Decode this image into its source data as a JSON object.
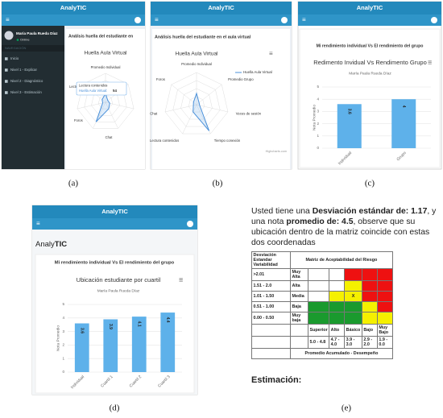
{
  "panels": {
    "a": {
      "caption": "(a)",
      "app_title": "AnalyTIC",
      "user": "María Paula Rueda Díaz",
      "status": "Online",
      "nav_heading": "NAVEGACIÓN",
      "menu": [
        "Inicio",
        "Nivel 1 - Explicar",
        "Nivel 2 - Diagnóstico",
        "Nivel 3 - Estimación"
      ],
      "section_title": "Análisis huella del estudiante en",
      "chart_title": "Huella Aula Virtual",
      "axis_labels": [
        "Promedio Individual",
        "Lectura contenidos",
        "Foros",
        "Chat"
      ],
      "tooltip": {
        "title": "Lectura contenidos",
        "label": "Huella Aula Virtual:",
        "value": 54
      }
    },
    "b": {
      "caption": "(b)",
      "app_title": "AnalyTIC",
      "section_title": "Análisis huella del estudiante en el aula virtual",
      "chart_title": "Huella Aula Virtual",
      "legend": "Huella Aula Virtual",
      "axis_labels": [
        "Promedio Individual",
        "Promedio Grupo",
        "Veces de sesión",
        "Tiempo conexión",
        "Lectura contenidos",
        "Chat",
        "Foros"
      ],
      "credits": "Highcharts.com"
    },
    "c": {
      "caption": "(c)",
      "app_title": "AnalyTIC",
      "section_title": "Mi rendimiento individual Vs El rendimiento del grupo",
      "chart": {
        "type": "bar",
        "title": "Redimento Invidual Vs Rendimento Grupo",
        "subtitle": "María Paula Rueda Díaz",
        "y_label": "Nota Promedio",
        "categories": [
          "Individual",
          "Grupo"
        ],
        "values": [
          3.6,
          4
        ],
        "color": "#5eb1ea",
        "ylim": [
          0,
          5
        ],
        "yticks": [
          0,
          1,
          2,
          3,
          4,
          5
        ],
        "grid": true
      }
    },
    "d": {
      "caption": "(d)",
      "app_title": "AnalyTIC",
      "logo": [
        "Analy",
        "TIC"
      ],
      "section_title": "Mi rendimiento individual Vs El rendimiento del grupo",
      "chart": {
        "type": "bar",
        "title": "Ubicación estudiante por cuartil",
        "subtitle": "María Paula Rueda Díaz",
        "y_label": "Nota Promedio",
        "categories": [
          "Individual",
          "Cuartil 1",
          "Cuartil 2",
          "Cuartil 3"
        ],
        "values": [
          3.6,
          3.9,
          4.1,
          4.4
        ],
        "color": "#5eb1ea",
        "ylim": [
          0,
          5
        ],
        "yticks": [
          0,
          1,
          2,
          3,
          4,
          5
        ],
        "grid": true
      }
    },
    "e": {
      "caption": "(e)",
      "text": {
        "p1": "Usted tiene una",
        "b1": "Desviación estándar de:",
        "std": 1.17,
        "p2": ", y una nota",
        "b2": "promedio de:",
        "avg": 4.5,
        "p3": ", observe que su ubicación dentro de la matriz coincide con estas dos coordenadas"
      },
      "matrix": {
        "corner": "Desviación Estandar Variabilidad",
        "title": "Matriz de Aceptabilidad del Riesgo",
        "rows": [
          [
            ">2.01",
            "Muy Alta"
          ],
          [
            "1.51 - 2.0",
            "Alta"
          ],
          [
            "1.01 - 1.50",
            "Media"
          ],
          [
            "0.51 - 1.00",
            "Baja"
          ],
          [
            "0.00 - 0.50",
            "Muy baja"
          ]
        ],
        "marker": "X",
        "columns": [
          "Superior",
          "Alto",
          "Básico",
          "Bajo",
          "Muy Bajo"
        ],
        "ranges": [
          "5.0 - 4.8",
          "4.7 - 4.0",
          "3.9 - 3.0",
          "2.9 - 2.0",
          "1.9 - 0.0"
        ],
        "footer": "Promedio Acumulado - Desempeño"
      },
      "next_heading": "Estimación:"
    }
  }
}
